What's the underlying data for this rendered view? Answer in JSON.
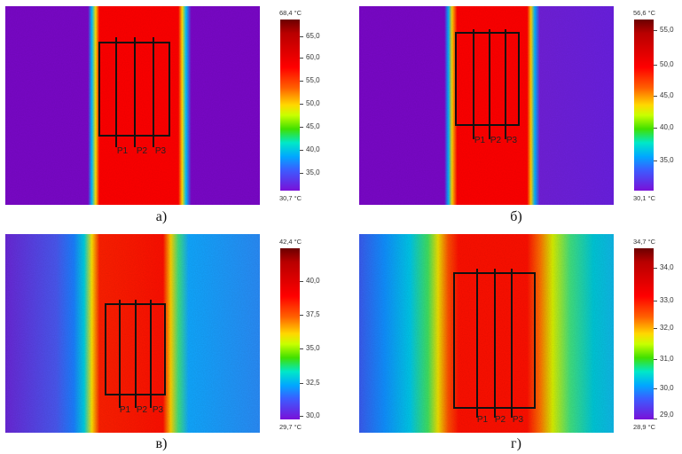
{
  "panels": [
    {
      "caption": "а)",
      "max_label": "68,4 °C",
      "min_label": "30,7 °C",
      "ticks": [
        "65,0",
        "60,0",
        "55,0",
        "50,0",
        "45,0",
        "40,0",
        "35,0"
      ],
      "points": [
        "P1",
        "P2",
        "P3"
      ]
    },
    {
      "caption": "б)",
      "max_label": "56,6 °C",
      "min_label": "30,1 °C",
      "ticks": [
        "55,0",
        "50,0",
        "45,0",
        "40,0",
        "35,0"
      ],
      "points": [
        "P1",
        "P2",
        "P3"
      ]
    },
    {
      "caption": "в)",
      "max_label": "42,4 °C",
      "min_label": "29,7 °C",
      "ticks": [
        "40,0",
        "37,5",
        "35,0",
        "32,5",
        "30,0"
      ],
      "points": [
        "P1",
        "P2",
        "P3"
      ]
    },
    {
      "caption": "г)",
      "max_label": "34,7 °C",
      "min_label": "28,9 °C",
      "ticks": [
        "34,0",
        "33,0",
        "32,0",
        "31,0",
        "30,0",
        "29,0"
      ],
      "points": [
        "P1",
        "P2",
        "P3"
      ]
    }
  ]
}
